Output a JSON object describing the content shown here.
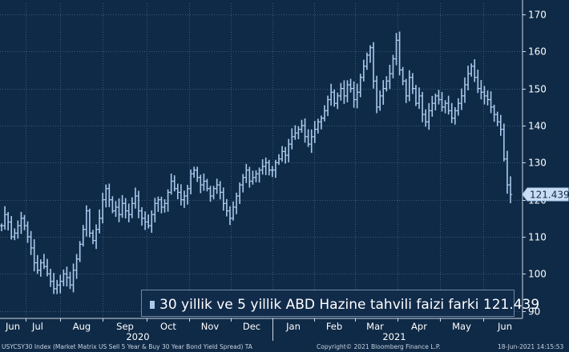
{
  "chart_data": {
    "type": "bar",
    "bar_style": "ohlc",
    "title": "",
    "legend": {
      "label": "30 yillik ve 5 yillik ABD Hazine tahvili faizi farki",
      "value_text": "121.439",
      "placement": "bottom-right"
    },
    "last_value_label": "121.439",
    "y_axis": {
      "side": "right",
      "range": [
        88,
        173
      ],
      "ticks": [
        90,
        100,
        110,
        120,
        130,
        140,
        150,
        160,
        170
      ]
    },
    "grid": true,
    "x_axis": {
      "month_labels": [
        "Jun",
        "Jul",
        "Aug",
        "Sep",
        "Oct",
        "Nov",
        "Dec",
        "Jan",
        "Feb",
        "Mar",
        "Apr",
        "May",
        "Jun"
      ],
      "year_labels": [
        "2020",
        "2021"
      ]
    },
    "series": [
      {
        "color": "#a9c9ec",
        "values": [
          113,
          116,
          114,
          110,
          111,
          113,
          115,
          113,
          110,
          107,
          103,
          101,
          103,
          102,
          100,
          98,
          96,
          97,
          98,
          100,
          99,
          97,
          101,
          104,
          108,
          112,
          117,
          111,
          109,
          112,
          115,
          120,
          123,
          120,
          117,
          118,
          116,
          119,
          117,
          116,
          119,
          121,
          117,
          115,
          114,
          113,
          116,
          119,
          120,
          118,
          119,
          122,
          125,
          123,
          122,
          120,
          121,
          123,
          127,
          128,
          126,
          124,
          125,
          123,
          121,
          123,
          124,
          122,
          119,
          117,
          115,
          118,
          121,
          124,
          126,
          128,
          125,
          126,
          127,
          128,
          129,
          130,
          128,
          128,
          130,
          131,
          133,
          132,
          135,
          137,
          138,
          139,
          140,
          137,
          135,
          137,
          139,
          141,
          142,
          144,
          147,
          149,
          146,
          148,
          150,
          148,
          151,
          150,
          147,
          149,
          153,
          156,
          159,
          161,
          152,
          145,
          148,
          150,
          152,
          154,
          158,
          163,
          155,
          152,
          148,
          153,
          150,
          146,
          148,
          143,
          141,
          144,
          146,
          148,
          147,
          145,
          146,
          144,
          142,
          144,
          146,
          148,
          151,
          154,
          156,
          153,
          150,
          149,
          148,
          147,
          145,
          143,
          141,
          139,
          131,
          124,
          121.4
        ]
      }
    ]
  },
  "footer": {
    "left": "USYCSY30 Index (Market Matrix US Sell 5 Year & Buy 30 Year Bond Yield Spread) TA",
    "center": "Copyright© 2021 Bloomberg Finance L.P.",
    "right": "18-Jun-2021 14:15:53"
  }
}
